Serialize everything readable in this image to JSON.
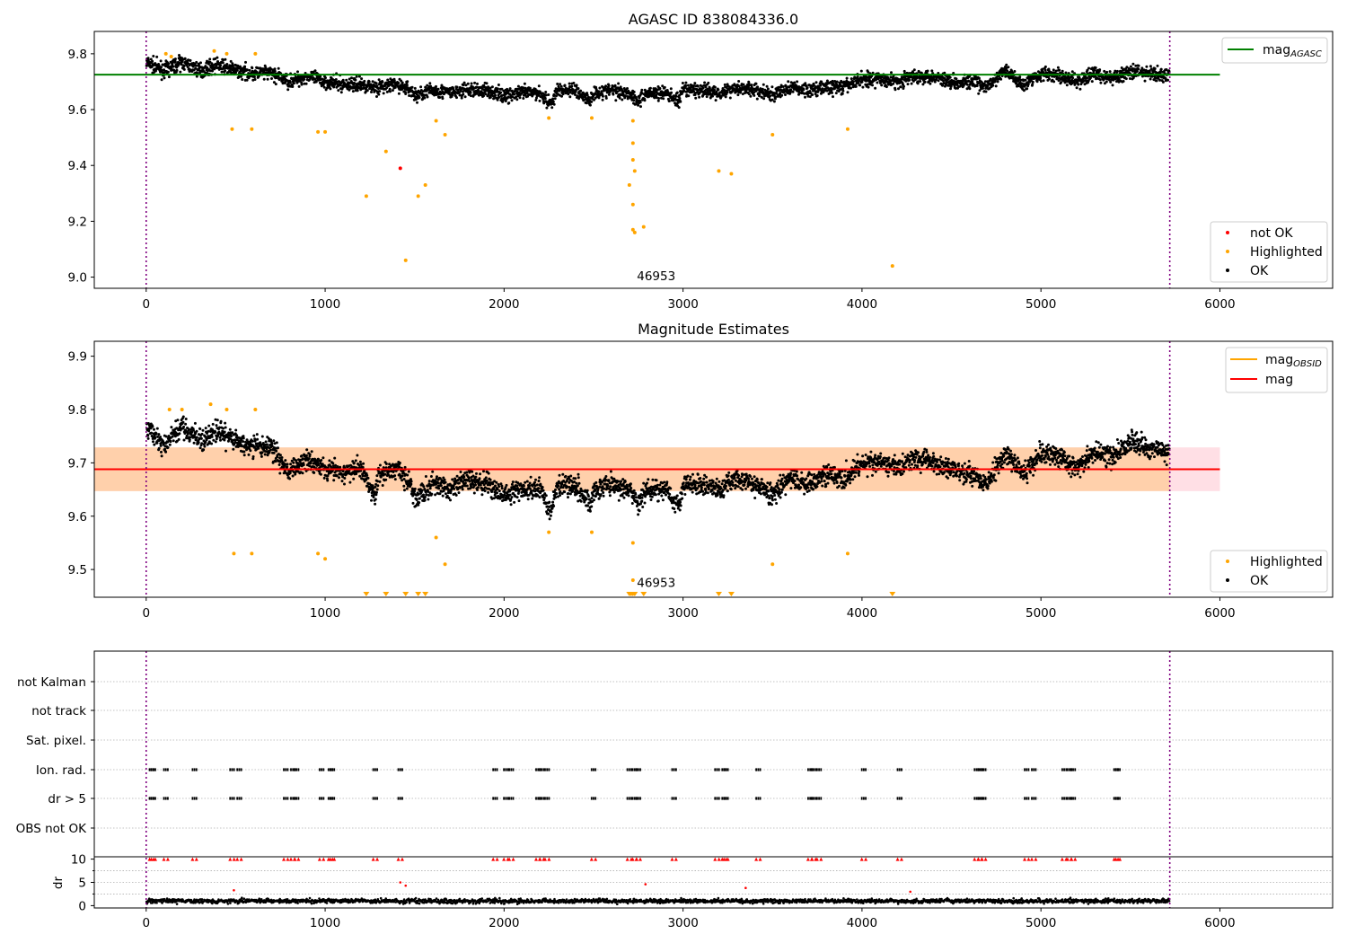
{
  "chart_data": [
    {
      "type": "scatter",
      "title": "AGASC ID 838084336.0",
      "xlim": [
        -290,
        6630
      ],
      "ylim": [
        8.96,
        9.88
      ],
      "xticks": [
        0,
        1000,
        2000,
        3000,
        4000,
        5000,
        6000
      ],
      "xtick_labels": [
        "0",
        "1000",
        "2000",
        "3000",
        "4000",
        "5000",
        "6000"
      ],
      "yticks": [
        9.0,
        9.2,
        9.4,
        9.6,
        9.8
      ],
      "ytick_labels": [
        "9.0",
        "9.2",
        "9.4",
        "9.6",
        "9.8"
      ],
      "vlines": [
        0,
        5720
      ],
      "hline": {
        "label": "mag_AGASC",
        "y": 9.725,
        "x_range": [
          -290,
          6000
        ],
        "color": "#008000"
      },
      "annotation": {
        "text": "46953",
        "x": 2850,
        "y": 9.005
      },
      "legend_top": [
        {
          "label": "mag",
          "sub": "AGASC",
          "color": "#008000"
        }
      ],
      "legend_bottom": [
        {
          "label": "not OK",
          "color": "#ff0000"
        },
        {
          "label": "Highlighted",
          "color": "#ffa500"
        },
        {
          "label": "OK",
          "color": "#000000"
        }
      ],
      "ok_trend": [
        [
          0,
          9.77
        ],
        [
          100,
          9.74
        ],
        [
          200,
          9.77
        ],
        [
          300,
          9.74
        ],
        [
          400,
          9.76
        ],
        [
          500,
          9.74
        ],
        [
          600,
          9.73
        ],
        [
          700,
          9.73
        ],
        [
          800,
          9.7
        ],
        [
          900,
          9.72
        ],
        [
          1000,
          9.7
        ],
        [
          1100,
          9.69
        ],
        [
          1200,
          9.69
        ],
        [
          1300,
          9.68
        ],
        [
          1400,
          9.69
        ],
        [
          1480,
          9.67
        ],
        [
          1500,
          9.65
        ],
        [
          1600,
          9.67
        ],
        [
          1700,
          9.66
        ],
        [
          1800,
          9.67
        ],
        [
          1900,
          9.67
        ],
        [
          2000,
          9.65
        ],
        [
          2100,
          9.66
        ],
        [
          2200,
          9.66
        ],
        [
          2260,
          9.62
        ],
        [
          2300,
          9.67
        ],
        [
          2400,
          9.67
        ],
        [
          2480,
          9.63
        ],
        [
          2500,
          9.66
        ],
        [
          2600,
          9.67
        ],
        [
          2700,
          9.66
        ],
        [
          2750,
          9.63
        ],
        [
          2800,
          9.66
        ],
        [
          2900,
          9.66
        ],
        [
          2980,
          9.63
        ],
        [
          3000,
          9.67
        ],
        [
          3100,
          9.67
        ],
        [
          3200,
          9.66
        ],
        [
          3300,
          9.68
        ],
        [
          3400,
          9.67
        ],
        [
          3500,
          9.65
        ],
        [
          3600,
          9.68
        ],
        [
          3700,
          9.67
        ],
        [
          3800,
          9.68
        ],
        [
          3900,
          9.68
        ],
        [
          4000,
          9.71
        ],
        [
          4100,
          9.71
        ],
        [
          4200,
          9.7
        ],
        [
          4300,
          9.72
        ],
        [
          4400,
          9.72
        ],
        [
          4500,
          9.7
        ],
        [
          4600,
          9.7
        ],
        [
          4700,
          9.68
        ],
        [
          4800,
          9.74
        ],
        [
          4900,
          9.69
        ],
        [
          5000,
          9.73
        ],
        [
          5100,
          9.72
        ],
        [
          5200,
          9.7
        ],
        [
          5300,
          9.73
        ],
        [
          5400,
          9.71
        ],
        [
          5500,
          9.74
        ],
        [
          5600,
          9.73
        ],
        [
          5700,
          9.72
        ]
      ],
      "ok_spread": 0.045,
      "highlighted": [
        [
          110,
          9.8
        ],
        [
          140,
          9.79
        ],
        [
          380,
          9.81
        ],
        [
          450,
          9.8
        ],
        [
          610,
          9.8
        ],
        [
          480,
          9.53
        ],
        [
          590,
          9.53
        ],
        [
          960,
          9.52
        ],
        [
          1000,
          9.52
        ],
        [
          1340,
          9.45
        ],
        [
          1230,
          9.29
        ],
        [
          1450,
          9.06
        ],
        [
          1520,
          9.29
        ],
        [
          1560,
          9.33
        ],
        [
          1620,
          9.56
        ],
        [
          1670,
          9.51
        ],
        [
          2250,
          9.57
        ],
        [
          2490,
          9.57
        ],
        [
          2700,
          9.33
        ],
        [
          2720,
          9.56
        ],
        [
          2720,
          9.48
        ],
        [
          2720,
          9.42
        ],
        [
          2730,
          9.38
        ],
        [
          2720,
          9.26
        ],
        [
          2720,
          9.17
        ],
        [
          2730,
          9.16
        ],
        [
          2780,
          9.18
        ],
        [
          3200,
          9.38
        ],
        [
          3270,
          9.37
        ],
        [
          3500,
          9.51
        ],
        [
          3920,
          9.53
        ],
        [
          4170,
          9.04
        ]
      ],
      "not_ok": [
        [
          1420,
          9.39
        ]
      ]
    },
    {
      "type": "scatter",
      "title": "Magnitude Estimates",
      "xlim": [
        -290,
        6630
      ],
      "ylim": [
        9.448,
        9.928
      ],
      "xticks": [
        0,
        1000,
        2000,
        3000,
        4000,
        5000,
        6000
      ],
      "xtick_labels": [
        "0",
        "1000",
        "2000",
        "3000",
        "4000",
        "5000",
        "6000"
      ],
      "yticks": [
        9.5,
        9.6,
        9.7,
        9.8,
        9.9
      ],
      "ytick_labels": [
        "9.5",
        "9.6",
        "9.7",
        "9.8",
        "9.9"
      ],
      "vlines": [
        0,
        5720
      ],
      "mag_line": {
        "y": 9.688,
        "x_range": [
          -290,
          6000
        ],
        "color": "#ff0000"
      },
      "band": {
        "y": [
          9.647,
          9.729
        ],
        "x_range": [
          -290,
          6000
        ]
      },
      "obsid_band": {
        "y": [
          9.647,
          9.729
        ],
        "x_range": [
          -290,
          5720
        ]
      },
      "annotation": {
        "text": "46953",
        "x": 2850,
        "y": 9.476
      },
      "legend_top": [
        {
          "label": "mag",
          "sub": "OBSID",
          "color": "#ffa500"
        },
        {
          "label": "mag",
          "sub": "",
          "color": "#ff0000"
        }
      ],
      "legend_bottom": [
        {
          "label": "Highlighted",
          "color": "#ffa500"
        },
        {
          "label": "OK",
          "color": "#000000"
        }
      ],
      "ok_trend": [
        [
          0,
          9.77
        ],
        [
          100,
          9.73
        ],
        [
          200,
          9.77
        ],
        [
          300,
          9.74
        ],
        [
          400,
          9.76
        ],
        [
          500,
          9.74
        ],
        [
          600,
          9.73
        ],
        [
          700,
          9.73
        ],
        [
          800,
          9.68
        ],
        [
          900,
          9.71
        ],
        [
          1000,
          9.69
        ],
        [
          1100,
          9.68
        ],
        [
          1200,
          9.69
        ],
        [
          1280,
          9.64
        ],
        [
          1300,
          9.68
        ],
        [
          1400,
          9.69
        ],
        [
          1480,
          9.66
        ],
        [
          1500,
          9.63
        ],
        [
          1600,
          9.66
        ],
        [
          1700,
          9.65
        ],
        [
          1800,
          9.67
        ],
        [
          1900,
          9.66
        ],
        [
          2000,
          9.64
        ],
        [
          2100,
          9.65
        ],
        [
          2200,
          9.65
        ],
        [
          2260,
          9.61
        ],
        [
          2300,
          9.66
        ],
        [
          2400,
          9.66
        ],
        [
          2480,
          9.62
        ],
        [
          2500,
          9.65
        ],
        [
          2600,
          9.66
        ],
        [
          2700,
          9.65
        ],
        [
          2750,
          9.62
        ],
        [
          2800,
          9.65
        ],
        [
          2900,
          9.65
        ],
        [
          2980,
          9.62
        ],
        [
          3000,
          9.66
        ],
        [
          3100,
          9.66
        ],
        [
          3200,
          9.65
        ],
        [
          3300,
          9.67
        ],
        [
          3400,
          9.66
        ],
        [
          3500,
          9.64
        ],
        [
          3600,
          9.67
        ],
        [
          3700,
          9.66
        ],
        [
          3800,
          9.68
        ],
        [
          3900,
          9.67
        ],
        [
          4000,
          9.7
        ],
        [
          4100,
          9.7
        ],
        [
          4200,
          9.69
        ],
        [
          4300,
          9.71
        ],
        [
          4400,
          9.7
        ],
        [
          4500,
          9.69
        ],
        [
          4600,
          9.68
        ],
        [
          4700,
          9.66
        ],
        [
          4800,
          9.72
        ],
        [
          4900,
          9.68
        ],
        [
          5000,
          9.72
        ],
        [
          5100,
          9.71
        ],
        [
          5200,
          9.69
        ],
        [
          5300,
          9.72
        ],
        [
          5400,
          9.71
        ],
        [
          5500,
          9.74
        ],
        [
          5600,
          9.73
        ],
        [
          5700,
          9.72
        ]
      ],
      "ok_spread": 0.035,
      "highlighted": [
        [
          130,
          9.8
        ],
        [
          200,
          9.8
        ],
        [
          360,
          9.81
        ],
        [
          450,
          9.8
        ],
        [
          610,
          9.8
        ],
        [
          490,
          9.53
        ],
        [
          590,
          9.53
        ],
        [
          960,
          9.53
        ],
        [
          1000,
          9.52
        ],
        [
          1620,
          9.56
        ],
        [
          1670,
          9.51
        ],
        [
          2250,
          9.57
        ],
        [
          2490,
          9.57
        ],
        [
          2720,
          9.55
        ],
        [
          2720,
          9.48
        ],
        [
          3500,
          9.51
        ],
        [
          3920,
          9.53
        ]
      ],
      "below_range": [
        1230,
        1340,
        1450,
        1520,
        1560,
        2700,
        2710,
        2720,
        2730,
        2780,
        3200,
        3270,
        4170
      ]
    },
    {
      "type": "scatter",
      "title": "",
      "xlim": [
        -290,
        6630
      ],
      "xticks": [
        0,
        1000,
        2000,
        3000,
        4000,
        5000,
        6000
      ],
      "xtick_labels": [
        "0",
        "1000",
        "2000",
        "3000",
        "4000",
        "5000",
        "6000"
      ],
      "vlines": [
        0,
        5720
      ],
      "flag_rows": [
        "not Kalman",
        "not track",
        "Sat. pixel.",
        "Ion. rad.",
        "dr > 5",
        "OBS not OK"
      ],
      "flag_times": [
        30,
        40,
        110,
        270,
        480,
        520,
        780,
        820,
        840,
        980,
        1030,
        1040,
        1280,
        1420,
        1950,
        2010,
        2040,
        2190,
        2210,
        2240,
        2500,
        2700,
        2730,
        2750,
        2950,
        3190,
        3230,
        3240,
        3420,
        3710,
        3730,
        3760,
        4010,
        4210,
        4640,
        4660,
        4680,
        4920,
        4960,
        5130,
        5160,
        5180,
        5420,
        5430
      ],
      "dr_ylabel": "dr",
      "dr_ylim": [
        -0.5,
        10.5
      ],
      "dr_yticks": [
        0,
        5,
        10
      ],
      "dr_ytick_labels": [
        "0",
        "5",
        "10"
      ],
      "dr_outliers": [
        [
          490,
          3.3
        ],
        [
          1420,
          5.0
        ],
        [
          1450,
          4.3
        ],
        [
          2790,
          4.6
        ],
        [
          3350,
          3.8
        ],
        [
          4270,
          3.0
        ]
      ]
    }
  ]
}
